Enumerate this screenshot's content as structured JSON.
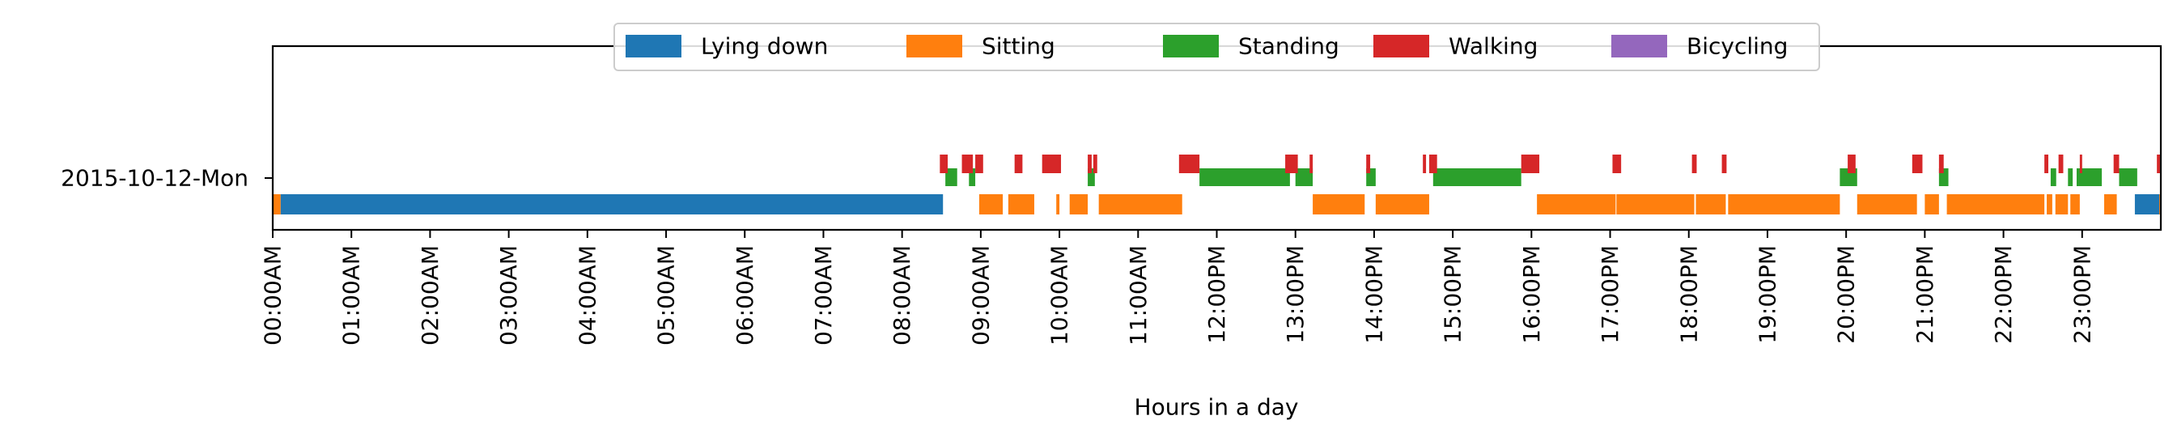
{
  "chart_data": {
    "type": "bar",
    "orientation": "horizontal",
    "subtype": "activity-timeline",
    "title": "",
    "xlabel": "Hours in a day",
    "ylabel": "",
    "xlim_hours": [
      0,
      24
    ],
    "x_tick_labels": [
      "00:00AM",
      "01:00AM",
      "02:00AM",
      "03:00AM",
      "04:00AM",
      "05:00AM",
      "06:00AM",
      "07:00AM",
      "08:00AM",
      "09:00AM",
      "10:00AM",
      "11:00AM",
      "12:00PM",
      "13:00PM",
      "14:00PM",
      "15:00PM",
      "16:00PM",
      "17:00PM",
      "18:00PM",
      "19:00PM",
      "20:00PM",
      "21:00PM",
      "22:00PM",
      "23:00PM"
    ],
    "x_tick_rotation": "vertical",
    "categories": [
      "2015-10-12-Mon"
    ],
    "grid": false,
    "legend_placement": "upper center",
    "series": [
      {
        "name": "Lying down",
        "color": "#1f77b4",
        "lane": 0,
        "intervals": [
          [
            0.1,
            8.52
          ],
          [
            23.67,
            23.98
          ]
        ]
      },
      {
        "name": "Sitting",
        "color": "#ff7f0e",
        "lane": 0,
        "intervals": [
          [
            0.0,
            0.1
          ],
          [
            8.98,
            9.28
          ],
          [
            9.35,
            9.68
          ],
          [
            9.96,
            10.0
          ],
          [
            10.13,
            10.36
          ],
          [
            10.5,
            11.56
          ],
          [
            13.22,
            13.88
          ],
          [
            14.02,
            14.7
          ],
          [
            16.07,
            17.07
          ],
          [
            17.08,
            18.07
          ],
          [
            18.09,
            18.47
          ],
          [
            18.5,
            19.92
          ],
          [
            20.14,
            20.9
          ],
          [
            21.0,
            21.18
          ],
          [
            21.28,
            22.52
          ],
          [
            22.55,
            22.62
          ],
          [
            22.66,
            22.82
          ],
          [
            22.85,
            22.97
          ],
          [
            23.28,
            23.44
          ],
          [
            23.98,
            24.0
          ]
        ]
      },
      {
        "name": "Standing",
        "color": "#2ca02c",
        "lane": 1,
        "intervals": [
          [
            8.55,
            8.7
          ],
          [
            8.85,
            8.93
          ],
          [
            10.36,
            10.45
          ],
          [
            11.78,
            12.93
          ],
          [
            13.0,
            13.22
          ],
          [
            13.9,
            14.02
          ],
          [
            14.75,
            15.87
          ],
          [
            19.92,
            20.14
          ],
          [
            21.18,
            21.3
          ],
          [
            22.6,
            22.67
          ],
          [
            22.82,
            22.88
          ],
          [
            22.93,
            23.25
          ],
          [
            23.47,
            23.7
          ]
        ]
      },
      {
        "name": "Walking",
        "color": "#d62728",
        "lane": 2,
        "intervals": [
          [
            8.48,
            8.58
          ],
          [
            8.76,
            8.9
          ],
          [
            8.93,
            9.03
          ],
          [
            9.43,
            9.53
          ],
          [
            9.78,
            10.02
          ],
          [
            10.36,
            10.41
          ],
          [
            10.43,
            10.48
          ],
          [
            11.52,
            11.78
          ],
          [
            12.87,
            13.03
          ],
          [
            13.18,
            13.22
          ],
          [
            13.9,
            13.95
          ],
          [
            14.62,
            14.66
          ],
          [
            14.7,
            14.8
          ],
          [
            15.87,
            16.1
          ],
          [
            17.03,
            17.14
          ],
          [
            18.04,
            18.1
          ],
          [
            18.42,
            18.48
          ],
          [
            20.02,
            20.12
          ],
          [
            20.84,
            20.97
          ],
          [
            21.18,
            21.24
          ],
          [
            22.52,
            22.57
          ],
          [
            22.7,
            22.76
          ],
          [
            22.97,
            23.0
          ],
          [
            23.4,
            23.47
          ],
          [
            23.95,
            24.0
          ]
        ]
      },
      {
        "name": "Bicycling",
        "color": "#9467bd",
        "lane": 0,
        "intervals": []
      }
    ]
  }
}
